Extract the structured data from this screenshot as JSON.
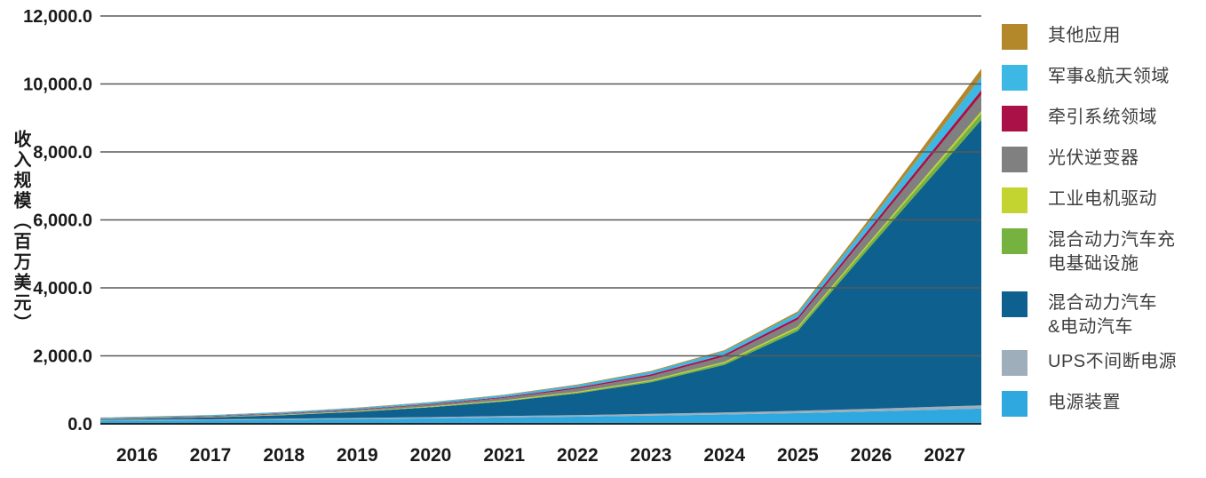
{
  "y_axis": {
    "title": "收入规模（百万美元）",
    "tick_labels": [
      "12,000.0",
      "10,000.0",
      "8,000.0",
      "6,000.0",
      "4,000.0",
      "2,000.0",
      "0.0"
    ],
    "tick_values": [
      12000,
      10000,
      8000,
      6000,
      4000,
      2000,
      0
    ]
  },
  "x_axis": {
    "labels": [
      "2016",
      "2017",
      "2018",
      "2019",
      "2020",
      "2021",
      "2022",
      "2023",
      "2024",
      "2025",
      "2026",
      "2027"
    ]
  },
  "chart_data": {
    "type": "area",
    "stacked": true,
    "title": "",
    "xlabel": "",
    "ylabel": "收入规模（百万美元）",
    "ylim": [
      0,
      12000
    ],
    "grid": true,
    "legend_position": "right",
    "categories": [
      "2016",
      "2017",
      "2018",
      "2019",
      "2020",
      "2021",
      "2022",
      "2023",
      "2024",
      "2025",
      "2026",
      "2027"
    ],
    "series": [
      {
        "name": "电源装置",
        "color": "#2EA8DF",
        "values": [
          95,
          105,
          120,
          140,
          160,
          185,
          210,
          240,
          275,
          315,
          365,
          420
        ]
      },
      {
        "name": "UPS不间断电源",
        "color": "#9FAEBB",
        "values": [
          25,
          27,
          30,
          33,
          37,
          42,
          47,
          53,
          60,
          68,
          78,
          90
        ]
      },
      {
        "name": "混合动力汽车&电动汽车",
        "color": "#0E618F",
        "values": [
          30,
          55,
          105,
          180,
          290,
          430,
          640,
          930,
          1400,
          2350,
          4800,
          7200
        ]
      },
      {
        "name": "混合动力汽车充电基础设施",
        "color": "#76B23F",
        "values": [
          2,
          3,
          5,
          8,
          12,
          18,
          26,
          38,
          55,
          80,
          115,
          160
        ]
      },
      {
        "name": "工业电机驱动",
        "color": "#C3D32F",
        "values": [
          5,
          6,
          8,
          10,
          13,
          17,
          22,
          28,
          35,
          45,
          55,
          70
        ]
      },
      {
        "name": "光伏逆变器",
        "color": "#808080",
        "values": [
          18,
          22,
          30,
          40,
          52,
          68,
          90,
          118,
          155,
          205,
          300,
          420
        ]
      },
      {
        "name": "牵引系统领域",
        "color": "#AA1146",
        "values": [
          8,
          10,
          13,
          17,
          22,
          28,
          36,
          47,
          60,
          75,
          95,
          120
        ]
      },
      {
        "name": "军事&航天领域",
        "color": "#3DB7E4",
        "values": [
          22,
          26,
          32,
          38,
          44,
          55,
          65,
          78,
          95,
          120,
          200,
          330
        ]
      },
      {
        "name": "其他应用",
        "color": "#B3882B",
        "values": [
          5,
          6,
          7,
          9,
          11,
          15,
          19,
          24,
          32,
          50,
          100,
          190
        ]
      }
    ],
    "totals": [
      210,
      260,
      350,
      475,
      641,
      858,
      1155,
      1556,
      2167,
      3308,
      6108,
      9000
    ],
    "legend": [
      {
        "label": "其他应用",
        "color": "#B3882B"
      },
      {
        "label": "军事&航天领域",
        "color": "#3DB7E4"
      },
      {
        "label": "牵引系统领域",
        "color": "#AA1146"
      },
      {
        "label": "光伏逆变器",
        "color": "#808080"
      },
      {
        "label": "工业电机驱动",
        "color": "#C3D32F"
      },
      {
        "label": "混合动力汽车充\n电基础设施",
        "color": "#76B23F"
      },
      {
        "label": "混合动力汽车\n&电动汽车",
        "color": "#0E618F"
      },
      {
        "label": "UPS不间断电源",
        "color": "#9FAEBB"
      },
      {
        "label": "电源装置",
        "color": "#2EA8DF"
      }
    ],
    "colors": {
      "grid_line": "#595959",
      "axis_line": "#262626",
      "tick_text": "#1a1a1a"
    }
  }
}
